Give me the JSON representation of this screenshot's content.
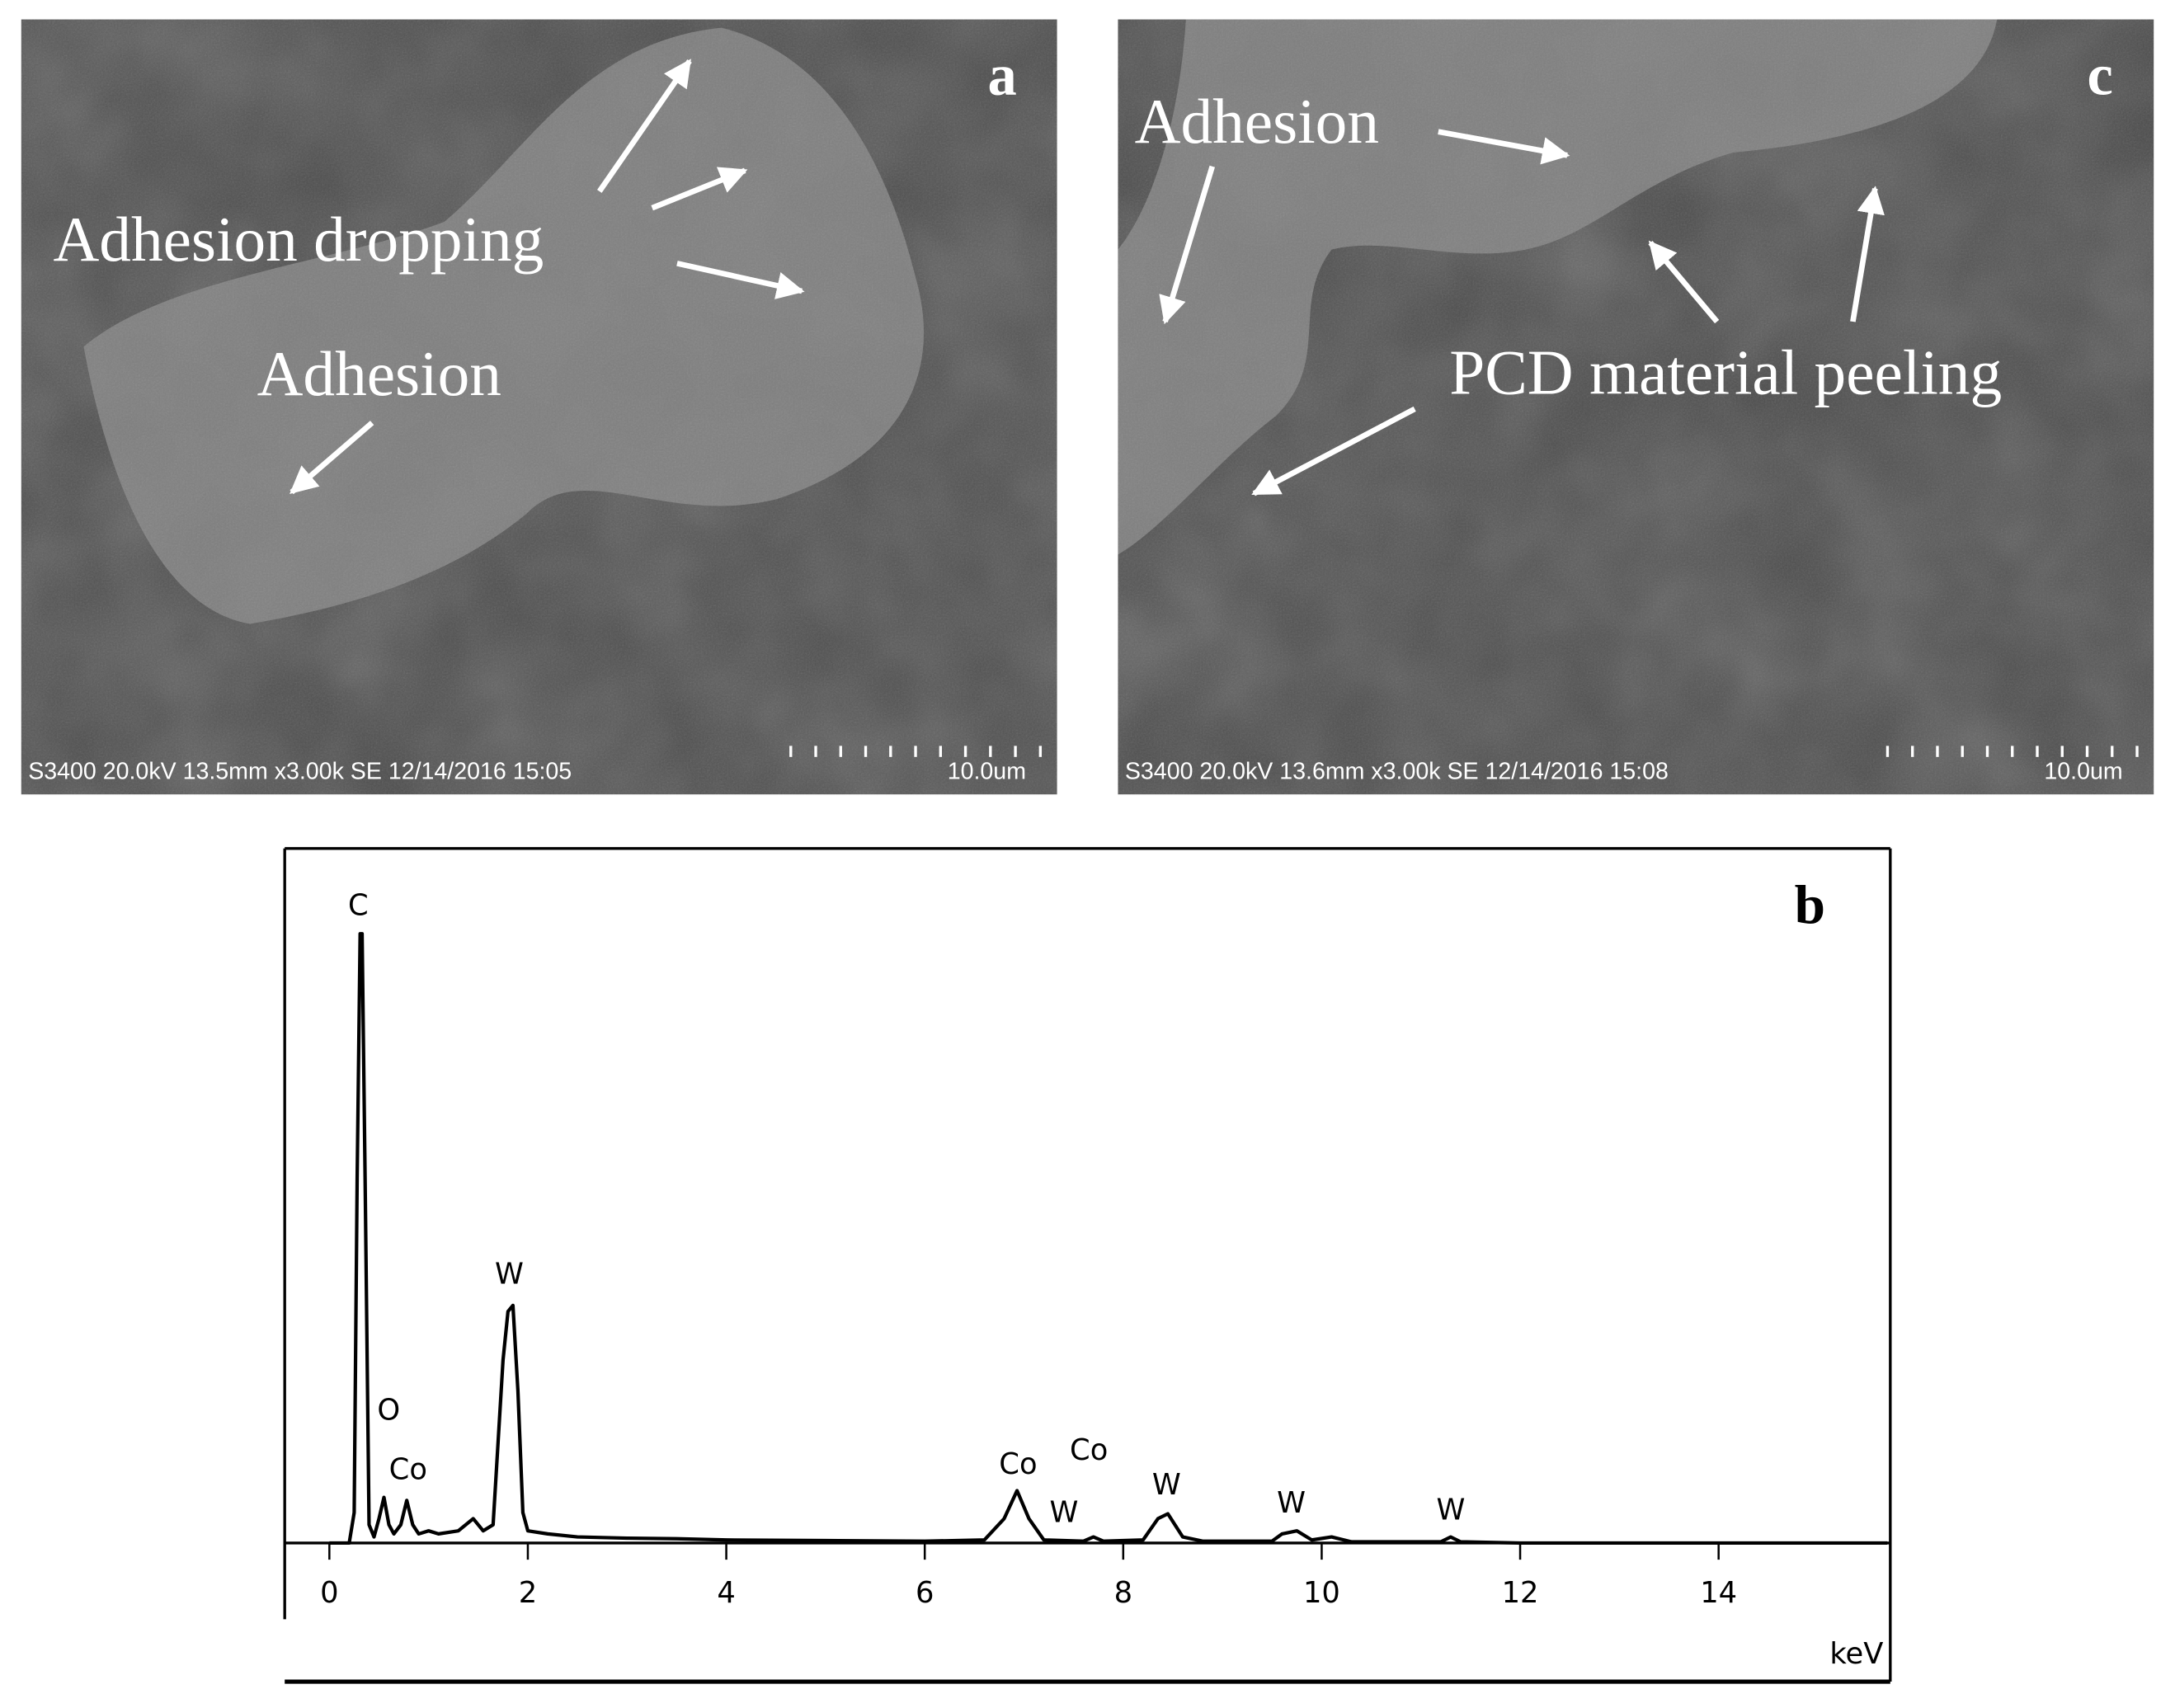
{
  "panels": [
    {
      "letter": "a",
      "labels": [
        "Adhesion dropping",
        "Adhesion"
      ],
      "info": "S3400 20.0kV 13.5mm x3.00k SE  12/14/2016 15:05",
      "scale": "10.0um"
    },
    {
      "letter": "c",
      "labels": [
        "Adhesion",
        "PCD material peeling"
      ],
      "info": "S3400 20.0kV 13.6mm x3.00k SE  12/14/2016 15:08",
      "scale": "10.0um"
    }
  ],
  "chart_data": {
    "type": "line",
    "label": "b",
    "x_label": "keV",
    "x": [
      0,
      0.2,
      0.25,
      0.28,
      0.31,
      0.33,
      0.36,
      0.4,
      0.45,
      0.5,
      0.55,
      0.6,
      0.65,
      0.72,
      0.78,
      0.84,
      0.9,
      1.0,
      1.1,
      1.3,
      1.45,
      1.55,
      1.65,
      1.75,
      1.8,
      1.85,
      1.9,
      1.95,
      2.0,
      2.2,
      2.5,
      3,
      3.5,
      4,
      5,
      6,
      6.6,
      6.8,
      6.93,
      7.05,
      7.2,
      7.6,
      7.7,
      7.8,
      8.2,
      8.35,
      8.45,
      8.6,
      8.8,
      9.5,
      9.6,
      9.75,
      9.9,
      10.1,
      10.3,
      11.2,
      11.3,
      11.4,
      12,
      15.7
    ],
    "values": [
      0,
      0,
      5,
      60,
      100,
      100,
      60,
      3,
      1,
      4,
      7.5,
      3,
      1.5,
      3,
      7,
      3,
      1.5,
      2,
      1.5,
      2,
      4,
      2,
      3,
      30,
      38,
      39,
      25,
      5,
      2,
      1.5,
      1,
      0.8,
      0.7,
      0.5,
      0.4,
      0.3,
      0.5,
      4,
      8.6,
      4,
      0.5,
      0.3,
      1,
      0.3,
      0.5,
      4,
      4.8,
      1,
      0.3,
      0.3,
      1.5,
      2,
      0.5,
      1,
      0.2,
      0.2,
      1,
      0.2,
      0,
      0
    ],
    "color": "#000000",
    "xlim": [
      -0.45,
      15.73
    ],
    "xticks": [
      0,
      2,
      4,
      6,
      8,
      10,
      12,
      14
    ],
    "ylim": [
      0,
      114
    ],
    "annotations": [
      "C",
      "O",
      "Co",
      "W",
      "Co",
      "Co",
      "W",
      "W",
      "W",
      "W"
    ]
  }
}
